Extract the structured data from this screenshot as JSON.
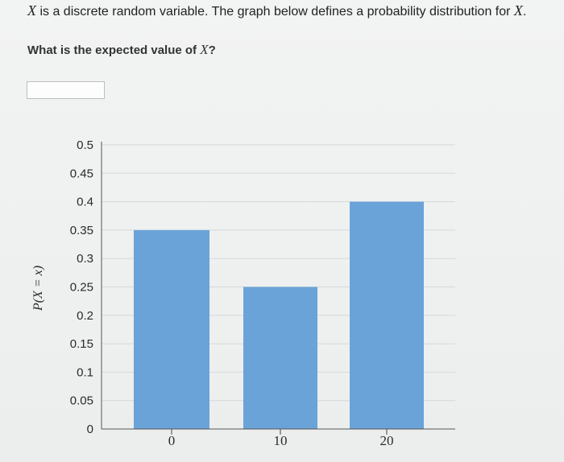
{
  "question": {
    "intro_var": "X",
    "intro_text": " is a discrete random variable. The graph below defines a probability distribution for ",
    "intro_var2": "X",
    "intro_end": ".",
    "prompt_text": "What is the expected value of ",
    "prompt_var": "X",
    "prompt_end": "?"
  },
  "answer": {
    "value": ""
  },
  "chart_data": {
    "type": "bar",
    "categories": [
      "0",
      "10",
      "20"
    ],
    "values": [
      0.35,
      0.25,
      0.4
    ],
    "ylabel": "P(X = x)",
    "ylim": [
      0,
      0.5
    ],
    "yticks": [
      "0",
      "0.05",
      "0.1",
      "0.15",
      "0.2",
      "0.25",
      "0.3",
      "0.35",
      "0.4",
      "0.45",
      "0.5"
    ],
    "grid": true,
    "bar_color": "#6aa3d8"
  }
}
